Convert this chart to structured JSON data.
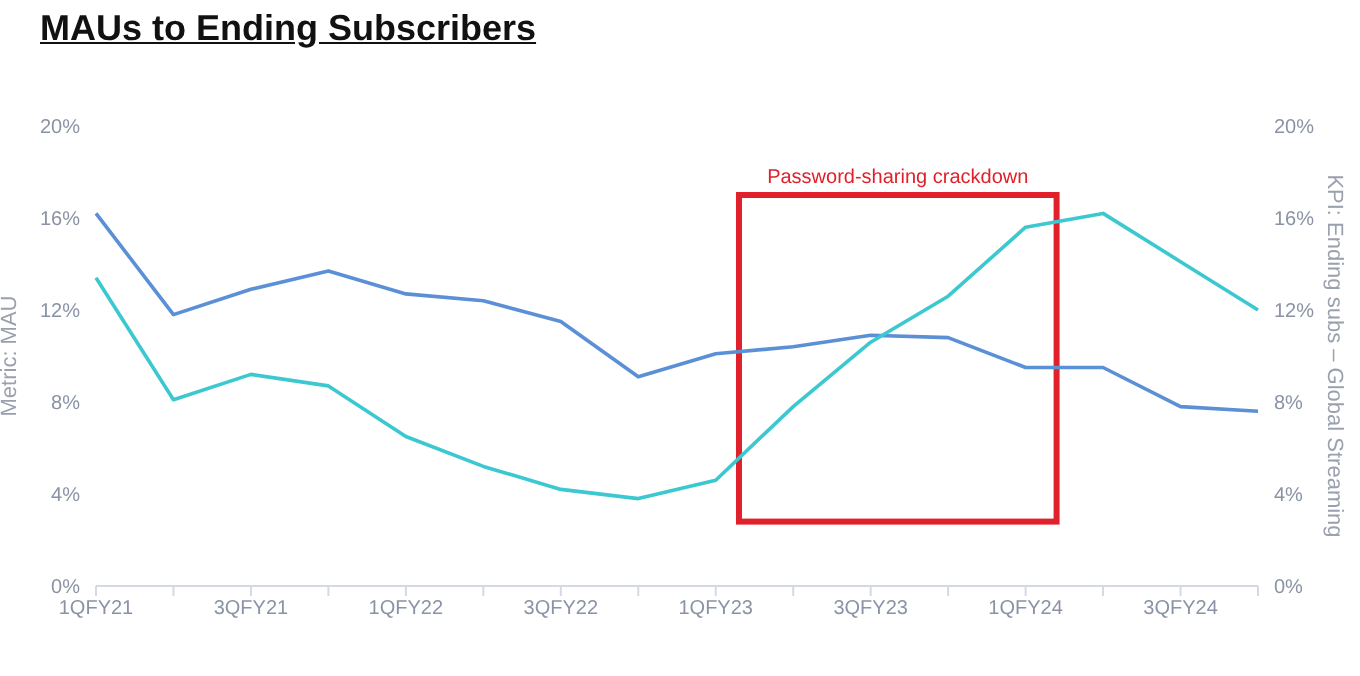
{
  "chart_data": {
    "type": "line",
    "title": "MAUs to Ending Subscribers",
    "ylabel": "Metric: MAU",
    "y2label": "KPI: Ending subs – Global Streaming",
    "categories": [
      "1QFY21",
      null,
      "3QFY21",
      null,
      "1QFY22",
      null,
      "3QFY22",
      null,
      "1QFY23",
      null,
      "3QFY23",
      null,
      "1QFY24",
      null,
      "3QFY24",
      null
    ],
    "series": [
      {
        "color": "#5b8fd6",
        "values": [
          16.2,
          11.8,
          12.9,
          13.7,
          12.7,
          12.4,
          11.5,
          9.1,
          10.1,
          10.4,
          10.9,
          10.8,
          9.5,
          9.5,
          7.8,
          7.6
        ]
      },
      {
        "color": "#3cc8d0",
        "axis": "y2",
        "values": [
          13.4,
          8.1,
          9.2,
          8.7,
          6.5,
          5.2,
          4.2,
          3.8,
          4.6,
          7.8,
          10.6,
          12.6,
          15.6,
          16.2,
          14.1,
          12.0
        ]
      }
    ],
    "ylim": [
      0,
      20
    ],
    "yticks": [
      {
        "value": 0,
        "label": "0%"
      },
      {
        "value": 4,
        "label": "4%"
      },
      {
        "value": 8,
        "label": "8%"
      },
      {
        "value": 12,
        "label": "12%"
      },
      {
        "value": 16,
        "label": "16%"
      },
      {
        "value": 20,
        "label": "20%"
      }
    ],
    "y2lim": [
      0,
      20
    ],
    "y2ticks": [
      {
        "value": 0,
        "label": "0%"
      },
      {
        "value": 4,
        "label": "4%"
      },
      {
        "value": 8,
        "label": "8%"
      },
      {
        "value": 12,
        "label": "12%"
      },
      {
        "value": 16,
        "label": "16%"
      },
      {
        "value": 20,
        "label": "20%"
      }
    ],
    "annotations": [
      "Password-sharing crackdown"
    ],
    "grid": false,
    "legend": false,
    "marker": "none",
    "line_style": "solid"
  }
}
